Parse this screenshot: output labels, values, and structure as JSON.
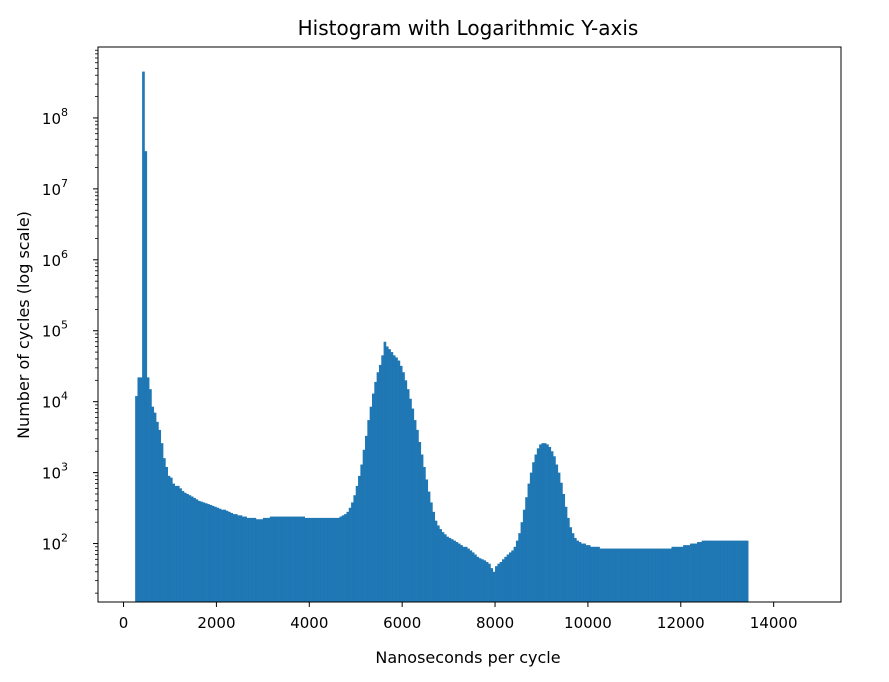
{
  "chart_data": {
    "type": "bar",
    "title": "Histogram with Logarithmic Y-axis",
    "xlabel": "Nanoseconds per cycle",
    "ylabel": "Number of cycles (log scale)",
    "x_scale": "linear",
    "y_scale": "log",
    "xlim": [
      -550,
      15450
    ],
    "ylim": [
      15,
      1000000000
    ],
    "x_ticks": [
      0,
      2000,
      4000,
      6000,
      8000,
      10000,
      12000,
      14000
    ],
    "x_tick_labels": [
      "0",
      "2000",
      "4000",
      "6000",
      "8000",
      "10000",
      "12000",
      "14000"
    ],
    "y_ticks": [
      100,
      1000,
      10000,
      100000,
      1000000,
      10000000,
      100000000
    ],
    "y_tick_labels": [
      {
        "base": "10",
        "exp": "2"
      },
      {
        "base": "10",
        "exp": "3"
      },
      {
        "base": "10",
        "exp": "4"
      },
      {
        "base": "10",
        "exp": "5"
      },
      {
        "base": "10",
        "exp": "6"
      },
      {
        "base": "10",
        "exp": "7"
      },
      {
        "base": "10",
        "exp": "8"
      }
    ],
    "grid": false,
    "bar_color": "#1f77b4",
    "bin_width": 50,
    "bin_start": 250,
    "values": [
      12000,
      22000,
      22000,
      450000000,
      34000000,
      22000,
      15000,
      8500,
      7000,
      5200,
      4000,
      2600,
      1600,
      1200,
      900,
      850,
      700,
      650,
      650,
      600,
      550,
      520,
      500,
      480,
      460,
      440,
      420,
      400,
      390,
      380,
      370,
      360,
      350,
      340,
      330,
      320,
      310,
      300,
      300,
      290,
      280,
      270,
      260,
      260,
      250,
      250,
      240,
      240,
      230,
      230,
      230,
      230,
      220,
      220,
      220,
      230,
      230,
      230,
      240,
      240,
      240,
      240,
      240,
      240,
      240,
      240,
      240,
      240,
      240,
      240,
      240,
      240,
      240,
      230,
      230,
      230,
      230,
      230,
      230,
      230,
      230,
      230,
      230,
      230,
      230,
      230,
      230,
      230,
      240,
      250,
      260,
      280,
      320,
      380,
      480,
      650,
      900,
      1300,
      2100,
      3300,
      5500,
      8500,
      13000,
      19000,
      26000,
      33000,
      45000,
      70000,
      60000,
      55000,
      50000,
      45000,
      42000,
      38000,
      32000,
      26000,
      20000,
      15000,
      11000,
      8000,
      5500,
      4000,
      2700,
      1800,
      1200,
      800,
      540,
      380,
      280,
      210,
      180,
      160,
      145,
      135,
      125,
      120,
      115,
      110,
      105,
      100,
      95,
      90,
      90,
      85,
      80,
      75,
      70,
      65,
      62,
      60,
      58,
      55,
      52,
      45,
      40,
      48,
      52,
      55,
      60,
      65,
      70,
      75,
      80,
      90,
      110,
      140,
      200,
      300,
      450,
      700,
      1000,
      1400,
      1800,
      2200,
      2500,
      2600,
      2600,
      2500,
      2300,
      2000,
      1700,
      1300,
      1000,
      720,
      500,
      330,
      230,
      170,
      140,
      120,
      110,
      105,
      100,
      100,
      95,
      95,
      90,
      90,
      90,
      90,
      85,
      85,
      85,
      85,
      85,
      85,
      85,
      85,
      85,
      85,
      85,
      85,
      85,
      85,
      85,
      85,
      85,
      85,
      85,
      85,
      85,
      85,
      85,
      85,
      85,
      85,
      85,
      85,
      85,
      85,
      85,
      90,
      90,
      90,
      90,
      90,
      95,
      95,
      95,
      100,
      100,
      100,
      105,
      105,
      110,
      110,
      110,
      110,
      110,
      110,
      110,
      110,
      110,
      110,
      110,
      110,
      110,
      110,
      110,
      110,
      110,
      110,
      110,
      110
    ]
  }
}
